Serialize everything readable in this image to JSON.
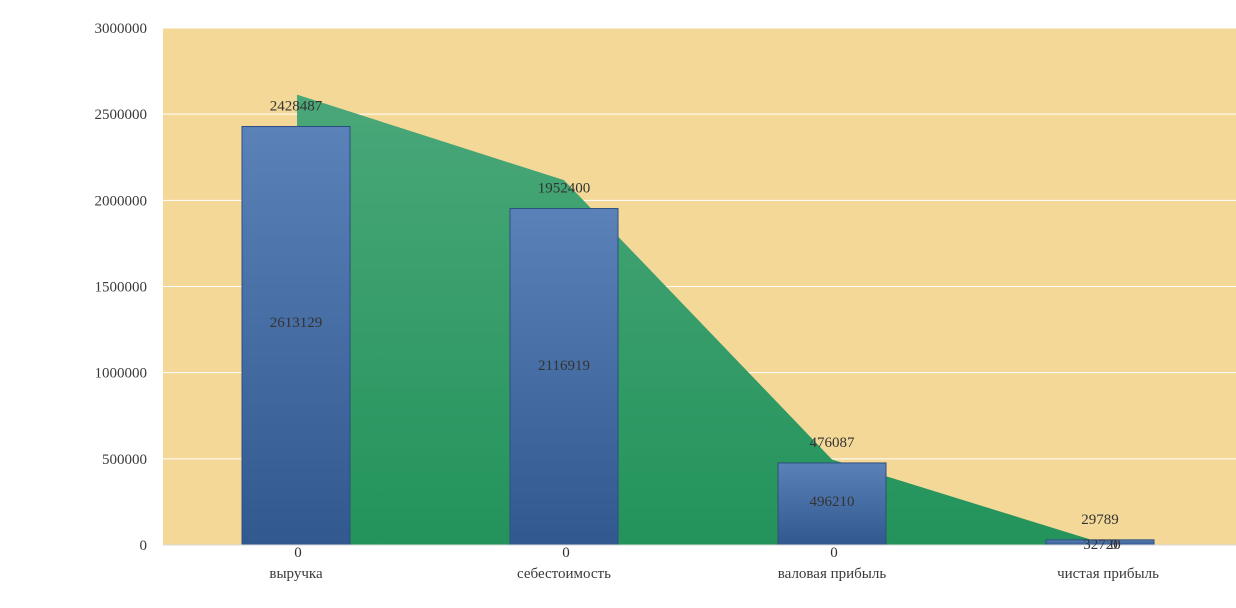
{
  "chart_data": {
    "type": "bar",
    "categories": [
      "выручка",
      "себестоимость",
      "валовая прибыль",
      "чистая прибыль"
    ],
    "series": [
      {
        "kind": "area",
        "values": [
          2613129,
          2116919,
          496210,
          32720
        ],
        "labels": [
          "2613129",
          "2116919",
          "496210",
          "32720"
        ]
      },
      {
        "kind": "bar",
        "values": [
          2428487,
          1952400,
          476087,
          29789
        ],
        "labels": [
          "2428487",
          "1952400",
          "476087",
          "29789"
        ]
      }
    ],
    "baseline_labels": [
      "0",
      "0",
      "0",
      "0"
    ],
    "y_ticks": [
      "0",
      "500000",
      "1000000",
      "1500000",
      "2000000",
      "2500000",
      "3000000"
    ],
    "ylim": [
      0,
      3000000
    ],
    "grid": true,
    "colors": {
      "plot_background": "#f3d898",
      "area": "#2e9a63",
      "bar": "#3f68a0",
      "bar_edge": "#2c4f7f",
      "grid": "#ffffff"
    }
  }
}
